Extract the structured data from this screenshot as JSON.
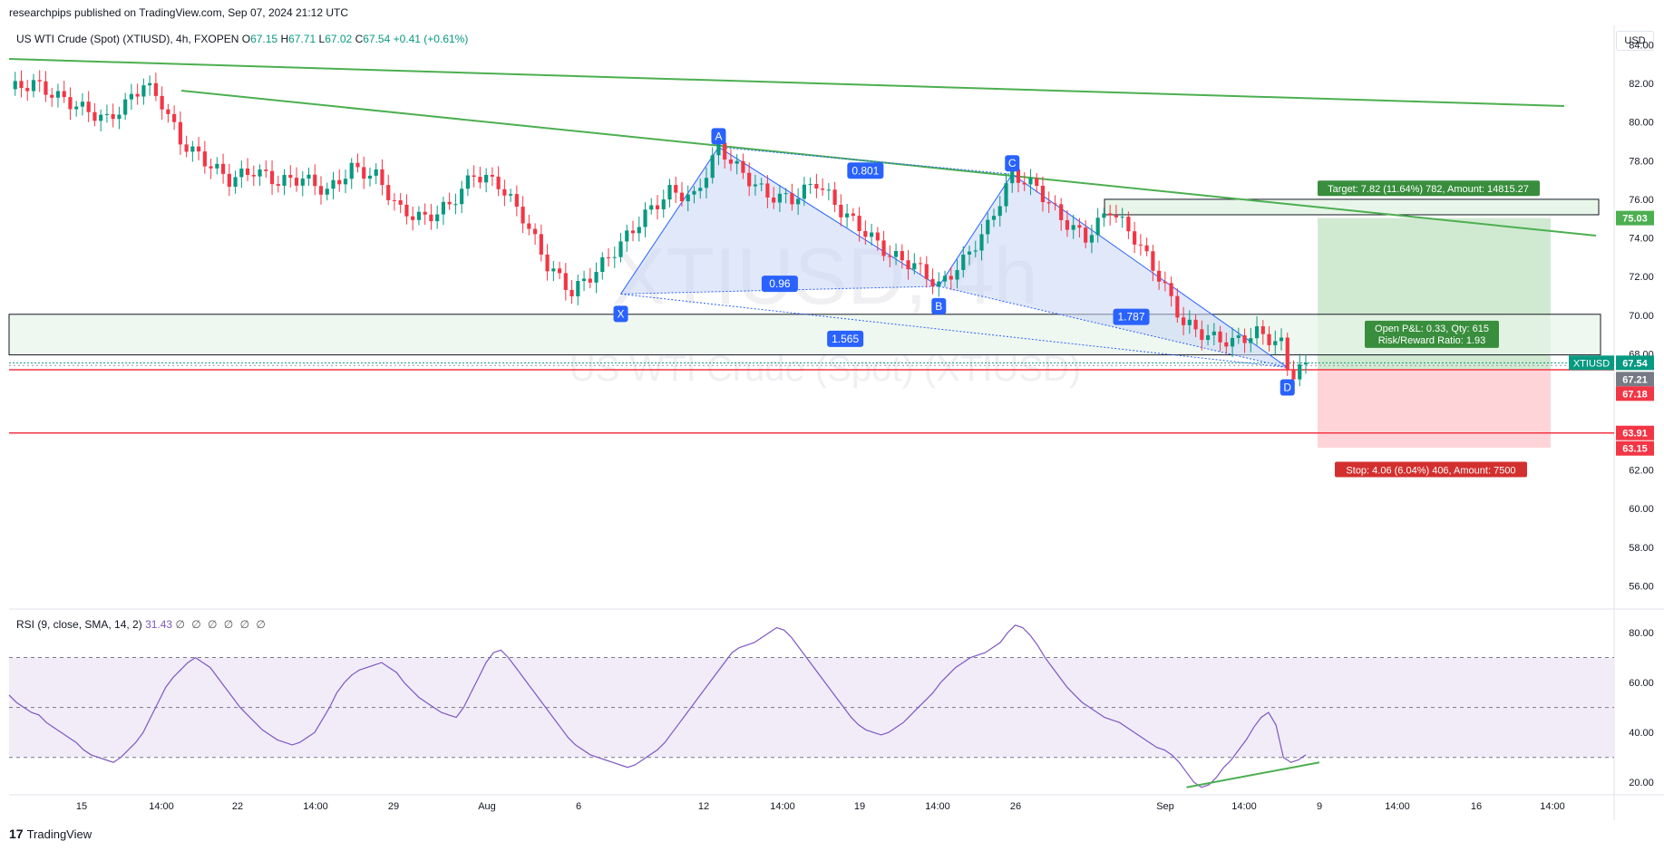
{
  "header": {
    "publisher": "researchpips published on TradingView.com, Sep 07, 2024 21:12 UTC"
  },
  "symbol": {
    "name": "US WTI Crude (Spot) (XTIUSD), 4h, FXOPEN",
    "open_label": "O",
    "open": "67.15",
    "high_label": "H",
    "high": "67.71",
    "low_label": "L",
    "low": "67.02",
    "close_label": "C",
    "close": "67.54",
    "change": "+0.41 (+0.61%)"
  },
  "watermark": {
    "big": "XTIUSD, 4h",
    "small": "US WTI Crude (Spot) (XTIUSD)"
  },
  "currency": "USD",
  "rsi": {
    "legend": "RSI (9, close, SMA, 14, 2)",
    "value": "31.43",
    "zeros": "∅ ∅ ∅ ∅ ∅ ∅"
  },
  "footer": {
    "brand": "TradingView",
    "mark": "17"
  },
  "colors": {
    "up": "#089981",
    "down": "#f23645",
    "trend": "#4caf50",
    "pattern": "#2962ff",
    "pattern_fill": "#c8d6f5",
    "rsi_line": "#7e57c2",
    "rsi_band": "#ede7f6",
    "target_fill": "#c8e6c9",
    "stop_fill": "#ffcdd2",
    "level_red": "#f23645"
  },
  "chart_data": [
    {
      "type": "candlestick",
      "title": "US WTI Crude (Spot) (XTIUSD), 4h, FXOPEN",
      "ylim": [
        54.8,
        85.0
      ],
      "y_ticks": [
        "84.00",
        "82.00",
        "80.00",
        "78.00",
        "76.00",
        "74.00",
        "72.00",
        "70.00",
        "68.00",
        "62.00",
        "60.00",
        "58.00",
        "56.00"
      ],
      "x_ticks": [
        "15",
        "14:00",
        "22",
        "14:00",
        "29",
        "Aug",
        "6",
        "12",
        "14:00",
        "19",
        "14:00",
        "26",
        "Sep",
        "14:00",
        "9",
        "14:00",
        "16",
        "14:00"
      ],
      "price_path": [
        [
          0,
          81.7
        ],
        [
          4,
          82.0
        ],
        [
          8,
          81.3
        ],
        [
          12,
          80.7
        ],
        [
          16,
          80.1
        ],
        [
          19,
          80.9
        ],
        [
          22,
          82.0
        ],
        [
          25,
          81.0
        ],
        [
          28,
          79.0
        ],
        [
          32,
          78.0
        ],
        [
          36,
          77.0
        ],
        [
          40,
          77.5
        ],
        [
          44,
          76.9
        ],
        [
          48,
          77.1
        ],
        [
          52,
          76.4
        ],
        [
          56,
          77.6
        ],
        [
          60,
          77.2
        ],
        [
          64,
          75.4
        ],
        [
          68,
          75.0
        ],
        [
          72,
          75.7
        ],
        [
          76,
          77.3
        ],
        [
          80,
          76.8
        ],
        [
          84,
          75.1
        ],
        [
          88,
          72.6
        ],
        [
          92,
          71.2
        ],
        [
          96,
          72.3
        ],
        [
          100,
          73.7
        ],
        [
          104,
          75.2
        ],
        [
          108,
          76.4
        ],
        [
          112,
          76.1
        ],
        [
          116,
          78.7
        ],
        [
          120,
          77.3
        ],
        [
          124,
          76.2
        ],
        [
          128,
          76.0
        ],
        [
          132,
          76.9
        ],
        [
          136,
          75.4
        ],
        [
          140,
          74.3
        ],
        [
          144,
          73.1
        ],
        [
          148,
          72.6
        ],
        [
          152,
          71.5
        ],
        [
          156,
          72.8
        ],
        [
          160,
          74.6
        ],
        [
          164,
          77.3
        ],
        [
          168,
          76.6
        ],
        [
          172,
          75.0
        ],
        [
          176,
          74.0
        ],
        [
          180,
          75.5
        ],
        [
          184,
          74.0
        ],
        [
          188,
          72.0
        ],
        [
          192,
          69.6
        ],
        [
          196,
          68.9
        ],
        [
          200,
          68.6
        ],
        [
          204,
          69.1
        ],
        [
          208,
          68.5
        ],
        [
          209,
          67.3
        ],
        [
          210,
          67.0
        ],
        [
          212,
          67.54
        ]
      ],
      "harmonic_points": [
        {
          "label": "X",
          "price": 71.1
        },
        {
          "label": "A",
          "price": 78.7
        },
        {
          "label": "B",
          "price": 71.5
        },
        {
          "label": "C",
          "price": 77.3
        },
        {
          "label": "D",
          "price": 67.3
        }
      ],
      "ratios": [
        {
          "label": "0.801"
        },
        {
          "label": "0.96"
        },
        {
          "label": "1.565"
        },
        {
          "label": "1.787"
        }
      ],
      "position": {
        "target_label": "Target: 7.82 (11.64%) 782, Amount: 14815.27",
        "open_pl_label": "Open P&L: 0.33, Qty: 615",
        "rr_label": "Risk/Reward Ratio: 1.93",
        "stop_label": "Stop: 4.06 (6.04%) 406, Amount: 7500",
        "entry": 67.21,
        "target": 75.03,
        "stop": 63.15
      },
      "price_tags": [
        {
          "text": "75.03",
          "color": "#4caf50"
        },
        {
          "text": "67.54",
          "color": "#089981",
          "prefix": "XTIUSD"
        },
        {
          "text": "67.21",
          "color": "#787b86"
        },
        {
          "text": "67.18",
          "color": "#f23645"
        },
        {
          "text": "63.91",
          "color": "#f23645"
        },
        {
          "text": "63.15",
          "color": "#f23645"
        }
      ],
      "levels": [
        67.18,
        63.91
      ]
    },
    {
      "type": "line",
      "name": "RSI (9, close, SMA, 14, 2)",
      "ylim": [
        15,
        88
      ],
      "y_ticks": [
        "80.00",
        "60.00",
        "40.00",
        "20.00"
      ],
      "bands": [
        70,
        50,
        30
      ],
      "values": [
        55,
        52,
        50,
        48,
        47,
        44,
        42,
        40,
        38,
        36,
        33,
        31,
        30,
        29,
        28,
        30,
        33,
        36,
        40,
        46,
        52,
        58,
        62,
        65,
        68,
        70,
        68,
        66,
        62,
        58,
        54,
        50,
        47,
        44,
        41,
        39,
        37,
        36,
        35,
        36,
        38,
        40,
        45,
        50,
        56,
        60,
        63,
        65,
        66,
        67,
        68,
        66,
        64,
        60,
        57,
        54,
        52,
        50,
        48,
        47,
        46,
        50,
        56,
        62,
        68,
        72,
        73,
        70,
        66,
        62,
        58,
        54,
        50,
        46,
        42,
        38,
        35,
        33,
        31,
        30,
        29,
        28,
        27,
        26,
        27,
        29,
        31,
        33,
        36,
        40,
        44,
        48,
        52,
        56,
        60,
        64,
        68,
        72,
        74,
        75,
        76,
        78,
        80,
        82,
        81,
        78,
        74,
        70,
        66,
        62,
        58,
        54,
        50,
        46,
        43,
        41,
        40,
        39,
        40,
        42,
        44,
        47,
        50,
        53,
        56,
        60,
        63,
        66,
        68,
        70,
        71,
        72,
        74,
        76,
        80,
        83,
        82,
        79,
        75,
        70,
        66,
        62,
        58,
        55,
        52,
        50,
        48,
        46,
        45,
        44,
        42,
        40,
        38,
        36,
        34,
        33,
        31,
        28,
        24,
        20,
        18,
        19,
        22,
        26,
        29,
        33,
        37,
        42,
        46,
        48,
        43,
        30,
        28,
        29,
        31
      ]
    }
  ]
}
